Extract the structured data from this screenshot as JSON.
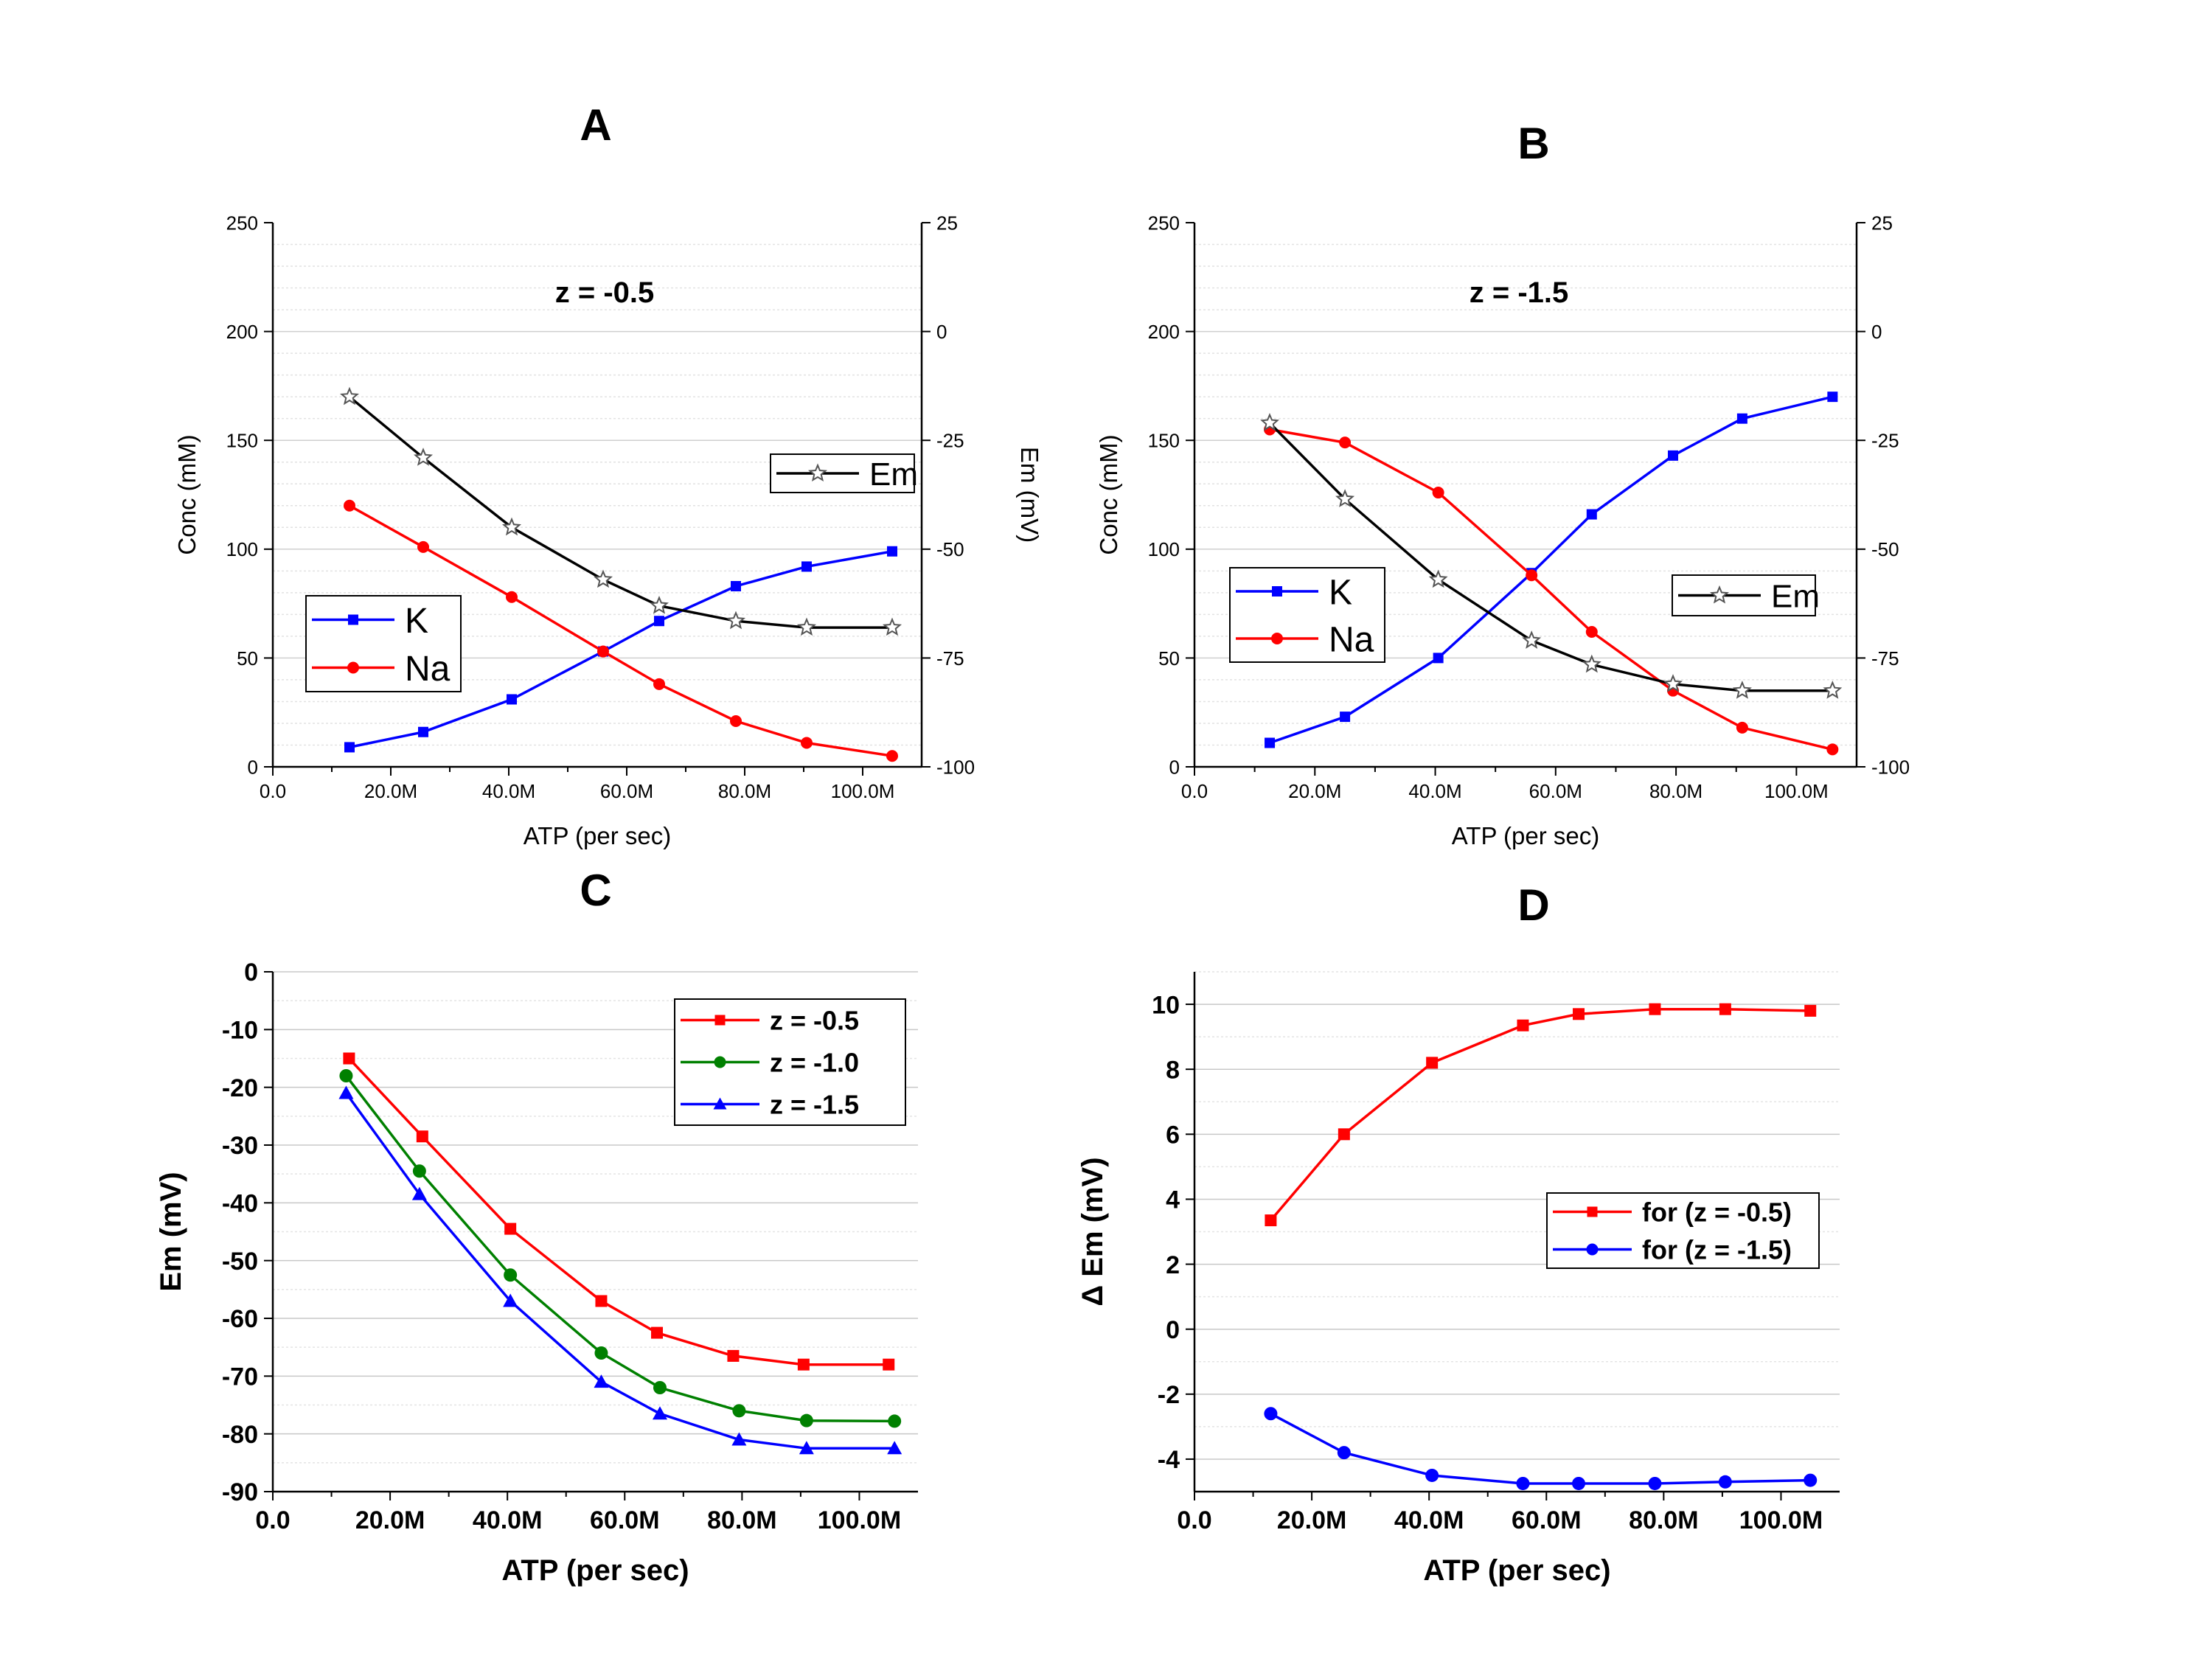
{
  "chart_data": [
    {
      "panel_label": "A",
      "type": "line",
      "annotation": "z = -0.5",
      "xlabel": "ATP (per sec)",
      "ylabel": "Conc (mM)",
      "ylabel_right": "Em (mV)",
      "xlim": [
        0,
        110000000
      ],
      "ylim": [
        0,
        250
      ],
      "ylim_right": [
        -100,
        25
      ],
      "x_ticks": [
        "0.0",
        "20.0M",
        "40.0M",
        "60.0M",
        "80.0M",
        "100.0M"
      ],
      "y_ticks": [
        "0",
        "50",
        "100",
        "150",
        "200",
        "250"
      ],
      "y_ticks_right": [
        "-100",
        "-75",
        "-50",
        "-25",
        "0",
        "25"
      ],
      "legend_placement": "left",
      "legend_right_placement": "right",
      "series": [
        {
          "name": "K",
          "axis": "left",
          "color": "#0000ff",
          "marker": "square",
          "x": [
            13000000,
            25500000,
            40500000,
            56000000,
            65500000,
            78500000,
            90500000,
            105000000
          ],
          "y": [
            9,
            16,
            31,
            53,
            67,
            83,
            92,
            99
          ]
        },
        {
          "name": "Na",
          "axis": "left",
          "color": "#ff0000",
          "marker": "circle",
          "x": [
            13000000,
            25500000,
            40500000,
            56000000,
            65500000,
            78500000,
            90500000,
            105000000
          ],
          "y": [
            120,
            101,
            78,
            53,
            38,
            21,
            11,
            5
          ]
        },
        {
          "name": "Em",
          "axis": "right",
          "color": "#000000",
          "marker": "star",
          "x": [
            13000000,
            25500000,
            40500000,
            56000000,
            65500000,
            78500000,
            90500000,
            105000000
          ],
          "y": [
            -15,
            -29,
            -45,
            -57,
            -63,
            -66.5,
            -68,
            -68
          ]
        }
      ]
    },
    {
      "panel_label": "B",
      "type": "line",
      "annotation": "z = -1.5",
      "xlabel": "ATP (per sec)",
      "ylabel": "Conc (mM)",
      "ylabel_right": "",
      "xlim": [
        0,
        110000000
      ],
      "ylim": [
        0,
        250
      ],
      "ylim_right": [
        -100,
        25
      ],
      "x_ticks": [
        "0.0",
        "20.0M",
        "40.0M",
        "60.0M",
        "80.0M",
        "100.0M"
      ],
      "y_ticks": [
        "0",
        "50",
        "100",
        "150",
        "200",
        "250"
      ],
      "y_ticks_right": [
        "-100",
        "-75",
        "-50",
        "-25",
        "0",
        "25"
      ],
      "legend_placement": "left",
      "legend_right_placement": "right",
      "series": [
        {
          "name": "K",
          "axis": "left",
          "color": "#0000ff",
          "marker": "square",
          "x": [
            12500000,
            25000000,
            40500000,
            56000000,
            66000000,
            79500000,
            91000000,
            106000000
          ],
          "y": [
            11,
            23,
            50,
            89,
            116,
            143,
            160,
            170
          ]
        },
        {
          "name": "Na",
          "axis": "left",
          "color": "#ff0000",
          "marker": "circle",
          "x": [
            12500000,
            25000000,
            40500000,
            56000000,
            66000000,
            79500000,
            91000000,
            106000000
          ],
          "y": [
            155,
            149,
            126,
            88,
            62,
            35,
            18,
            8
          ]
        },
        {
          "name": "Em",
          "axis": "right",
          "color": "#000000",
          "marker": "star",
          "x": [
            12500000,
            25000000,
            40500000,
            56000000,
            66000000,
            79500000,
            91000000,
            106000000
          ],
          "y": [
            -21,
            -38.5,
            -57,
            -71,
            -76.5,
            -81,
            -82.5,
            -82.5
          ]
        }
      ]
    },
    {
      "panel_label": "C",
      "type": "line",
      "xlabel": "ATP (per sec)",
      "ylabel": "Em (mV)",
      "xlim": [
        0,
        110000000
      ],
      "ylim": [
        -90,
        0
      ],
      "x_ticks": [
        "0.0",
        "20.0M",
        "40.0M",
        "60.0M",
        "80.0M",
        "100.0M"
      ],
      "y_ticks": [
        "-90",
        "-80",
        "-70",
        "-60",
        "-50",
        "-40",
        "-30",
        "-20",
        "-10",
        "0"
      ],
      "legend_placement": "top-right",
      "series": [
        {
          "name": "z = -0.5",
          "color": "#ff0000",
          "marker": "square",
          "x": [
            13000000,
            25500000,
            40500000,
            56000000,
            65500000,
            78500000,
            90500000,
            105000000
          ],
          "y": [
            -15,
            -28.5,
            -44.5,
            -57,
            -62.5,
            -66.5,
            -68,
            -68
          ]
        },
        {
          "name": "z = -1.0",
          "color": "#008000",
          "marker": "circle",
          "x": [
            12500000,
            25000000,
            40500000,
            56000000,
            66000000,
            79500000,
            91000000,
            106000000
          ],
          "y": [
            -18,
            -34.5,
            -52.5,
            -66,
            -72,
            -76,
            -77.7,
            -77.8
          ]
        },
        {
          "name": "z = -1.5",
          "color": "#0000ff",
          "marker": "triangle",
          "x": [
            12500000,
            25000000,
            40500000,
            56000000,
            66000000,
            79500000,
            91000000,
            106000000
          ],
          "y": [
            -21,
            -38.5,
            -57,
            -71,
            -76.5,
            -81,
            -82.5,
            -82.5
          ]
        }
      ]
    },
    {
      "panel_label": "D",
      "type": "line",
      "xlabel": "ATP (per sec)",
      "ylabel": "Δ Em (mV)",
      "xlim": [
        0,
        110000000
      ],
      "ylim": [
        -5,
        11
      ],
      "x_ticks": [
        "0.0",
        "20.0M",
        "40.0M",
        "60.0M",
        "80.0M",
        "100.0M"
      ],
      "y_ticks": [
        "-4",
        "-2",
        "0",
        "2",
        "4",
        "6",
        "8",
        "10"
      ],
      "legend_placement": "right",
      "series": [
        {
          "name": "for (z = -0.5)",
          "color": "#ff0000",
          "marker": "square",
          "x": [
            13000000,
            25500000,
            40500000,
            56000000,
            65500000,
            78500000,
            90500000,
            105000000
          ],
          "y": [
            3.35,
            6,
            8.2,
            9.35,
            9.7,
            9.85,
            9.85,
            9.8
          ]
        },
        {
          "name": "for (z = -1.5)",
          "color": "#0000ff",
          "marker": "circle",
          "x": [
            13000000,
            25500000,
            40500000,
            56000000,
            65500000,
            78500000,
            90500000,
            105000000
          ],
          "y": [
            -2.6,
            -3.8,
            -4.5,
            -4.75,
            -4.75,
            -4.75,
            -4.7,
            -4.65
          ]
        }
      ]
    }
  ]
}
